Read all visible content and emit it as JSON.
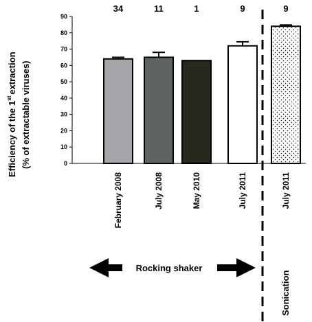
{
  "chart_data": {
    "type": "bar",
    "categories": [
      "February 2008",
      "July 2008",
      "May 2010",
      "July 2011",
      "July 2011"
    ],
    "values": [
      64,
      65,
      63,
      72,
      84
    ],
    "errors": [
      1,
      3,
      0,
      2.5,
      0.8
    ],
    "n_labels": [
      "34",
      "11",
      "1",
      "9",
      "9"
    ],
    "ylabel_line1": "Efficiency of the 1",
    "ylabel_sup": "st",
    "ylabel_line1_end": "extraction",
    "ylabel_line2": "(% of extractable viruses)",
    "yticks": [
      "0",
      "10",
      "20",
      "30",
      "40",
      "50",
      "60",
      "70",
      "80",
      "90"
    ],
    "ylim": [
      0,
      90
    ],
    "bar_colors": [
      "#a6a6aa",
      "#5e6460",
      "#262a1c",
      "#ffffff",
      "#ffffff"
    ],
    "bar_patterns": [
      "none",
      "none",
      "none",
      "none",
      "dots"
    ],
    "group_label_left": "Rocking shaker",
    "group_label_right": "Sonication"
  }
}
